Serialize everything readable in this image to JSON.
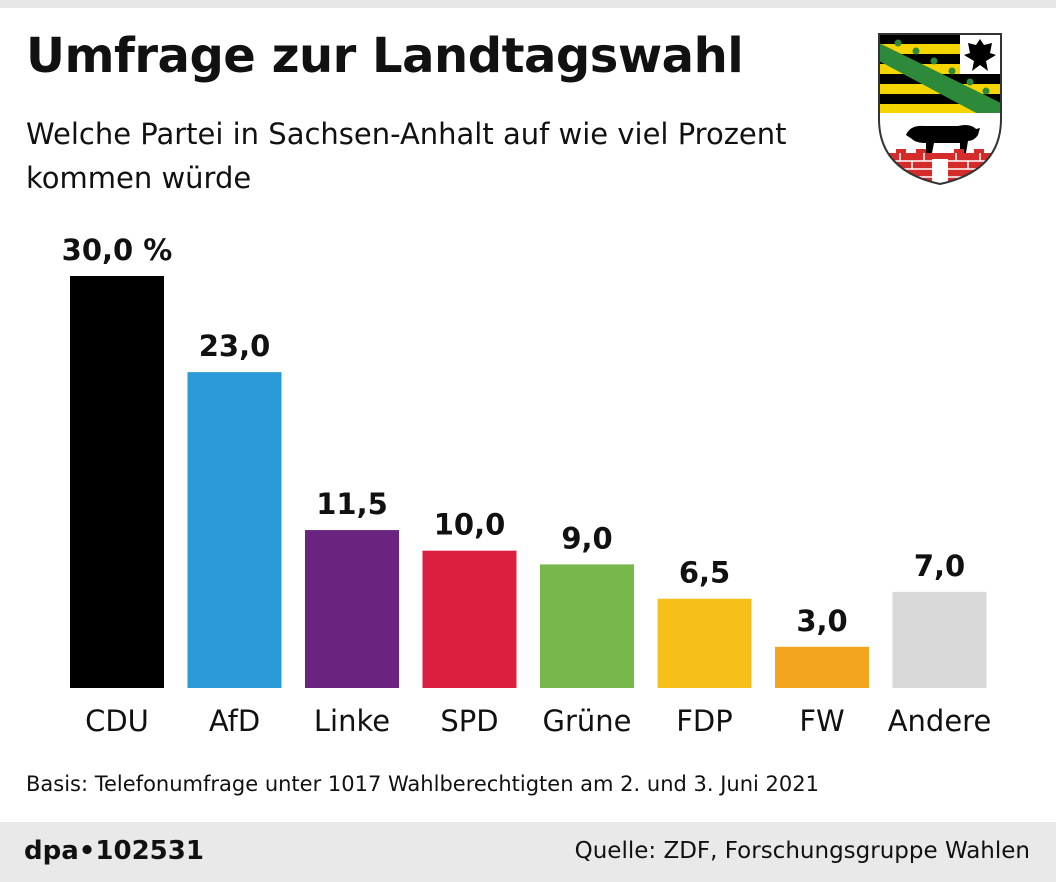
{
  "header": {
    "title": "Umfrage zur Landtagswahl",
    "subtitle_line1": "Welche Partei in Sachsen-Anhalt auf wie viel Prozent",
    "subtitle_line2": "kommen würde"
  },
  "chart_data": {
    "type": "bar",
    "title": "Umfrage zur Landtagswahl",
    "subtitle": "Welche Partei in Sachsen-Anhalt auf wie viel Prozent kommen würde",
    "categories": [
      "CDU",
      "AfD",
      "Linke",
      "SPD",
      "Grüne",
      "FDP",
      "FW",
      "Andere"
    ],
    "values": [
      30.0,
      23.0,
      11.5,
      10.0,
      9.0,
      6.5,
      3.0,
      7.0
    ],
    "value_labels": [
      "30,0 %",
      "23,0",
      "11,5",
      "10,0",
      "9,0",
      "6,5",
      "3,0",
      "7,0"
    ],
    "colors": [
      "#000000",
      "#2a9ad8",
      "#6b2380",
      "#dd1f3f",
      "#77b84c",
      "#f7bf1a",
      "#f2a51e",
      "#d9d9d9"
    ],
    "unit": "%",
    "xlabel": "",
    "ylabel": "",
    "ylim": [
      0,
      30
    ],
    "grid": false,
    "legend": "none"
  },
  "footer": {
    "basis": "Basis: Telefonumfrage unter 1017 Wahlberechtigten am 2. und 3. Juni 2021",
    "agency": "dpa•102531",
    "source": "Quelle: ZDF, Forschungsgruppe Wahlen"
  },
  "emblem": {
    "icon": "coat-of-arms-sachsen-anhalt-icon",
    "colors": {
      "black": "#000000",
      "gold": "#f5d400",
      "green": "#2d8a3a",
      "red": "#d42b2b"
    }
  }
}
